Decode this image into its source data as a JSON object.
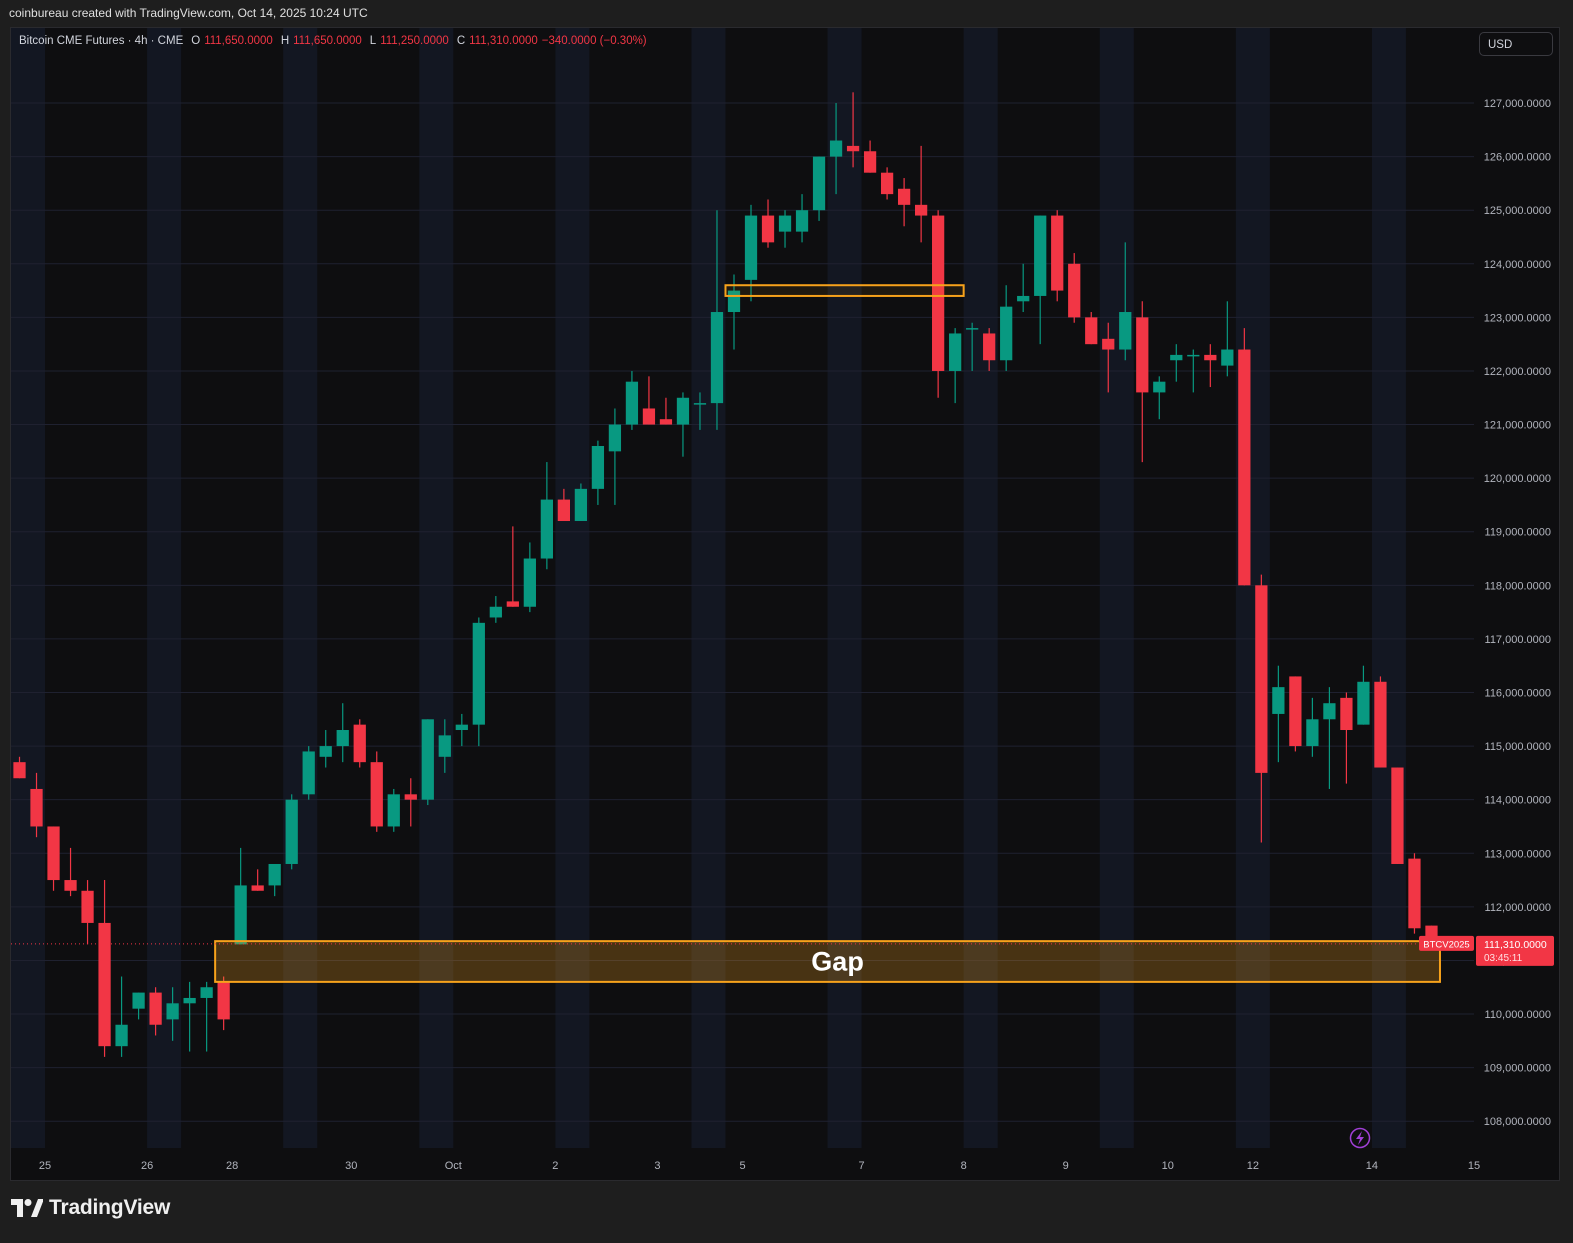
{
  "attribution": "coinbureau created with TradingView.com, Oct 14, 2025 10:24 UTC",
  "legend": {
    "name": "Bitcoin CME Futures · 4h · CME",
    "o_label": "O",
    "o_value": "111,650.0000",
    "h_label": "H",
    "h_value": "111,650.0000",
    "l_label": "L",
    "l_value": "111,250.0000",
    "c_label": "C",
    "c_value": "111,310.0000",
    "change": "−340.0000 (−0.30%)"
  },
  "currency": "USD",
  "price_tag": {
    "symbol": "BTCV2025",
    "price": "111,310.0000",
    "countdown": "03:45:11"
  },
  "footer": {
    "brand": "TradingView"
  },
  "colors": {
    "up": "#089981",
    "down": "#f23645",
    "box": "#f7a21b",
    "session_band": "#131722",
    "bg": "#0e0e10"
  },
  "icons": [
    "tradingview-logo-icon",
    "lightning-icon"
  ],
  "chart_data": {
    "type": "candlestick",
    "title": "Bitcoin CME Futures · 4h · CME",
    "ylim": [
      107500,
      128400
    ],
    "y_ticks": [
      108000,
      109000,
      110000,
      111000,
      112000,
      113000,
      114000,
      115000,
      116000,
      117000,
      118000,
      119000,
      120000,
      121000,
      122000,
      123000,
      124000,
      125000,
      126000,
      127000
    ],
    "y_tick_labels": [
      "108,000.0000",
      "109,000.0000",
      "110,000.0000",
      "111,000.0000",
      "112,000.0000",
      "113,000.0000",
      "114,000.0000",
      "115,000.0000",
      "116,000.0000",
      "117,000.0000",
      "118,000.0000",
      "119,000.0000",
      "120,000.0000",
      "121,000.0000",
      "122,000.0000",
      "123,000.0000",
      "124,000.0000",
      "125,000.0000",
      "126,000.0000",
      "127,000.0000"
    ],
    "x_labels": [
      {
        "label": "25",
        "index": 1.5
      },
      {
        "label": "26",
        "index": 7.5
      },
      {
        "label": "28",
        "index": 12.5
      },
      {
        "label": "30",
        "index": 19.5
      },
      {
        "label": "Oct",
        "index": 25.5
      },
      {
        "label": "2",
        "index": 31.5
      },
      {
        "label": "3",
        "index": 37.5
      },
      {
        "label": "5",
        "index": 42.5
      },
      {
        "label": "7",
        "index": 49.5
      },
      {
        "label": "8",
        "index": 55.5
      },
      {
        "label": "9",
        "index": 61.5
      },
      {
        "label": "10",
        "index": 67.5
      },
      {
        "label": "12",
        "index": 72.5
      },
      {
        "label": "14",
        "index": 79.5
      },
      {
        "label": "15",
        "index": 85.5
      }
    ],
    "total_slots": 86,
    "candles": [
      {
        "o": 114700,
        "h": 114800,
        "l": 114400,
        "c": 114400
      },
      {
        "o": 114200,
        "h": 114500,
        "l": 113300,
        "c": 113500
      },
      {
        "o": 113500,
        "h": 113500,
        "l": 112300,
        "c": 112500
      },
      {
        "o": 112500,
        "h": 113100,
        "l": 112200,
        "c": 112300
      },
      {
        "o": 112300,
        "h": 112500,
        "l": 111300,
        "c": 111700
      },
      {
        "o": 111700,
        "h": 112500,
        "l": 109200,
        "c": 109400
      },
      {
        "o": 109400,
        "h": 110700,
        "l": 109200,
        "c": 109800
      },
      {
        "o": 110100,
        "h": 110400,
        "l": 109900,
        "c": 110400
      },
      {
        "o": 110400,
        "h": 110500,
        "l": 109600,
        "c": 109800
      },
      {
        "o": 109900,
        "h": 110500,
        "l": 109500,
        "c": 110200
      },
      {
        "o": 110200,
        "h": 110600,
        "l": 109300,
        "c": 110300
      },
      {
        "o": 110300,
        "h": 110600,
        "l": 109300,
        "c": 110500
      },
      {
        "o": 110600,
        "h": 110700,
        "l": 109700,
        "c": 109900
      },
      {
        "o": 111300,
        "h": 113100,
        "l": 111300,
        "c": 112400
      },
      {
        "o": 112400,
        "h": 112700,
        "l": 112300,
        "c": 112300
      },
      {
        "o": 112400,
        "h": 112700,
        "l": 112200,
        "c": 112800
      },
      {
        "o": 112800,
        "h": 114100,
        "l": 112700,
        "c": 114000
      },
      {
        "o": 114100,
        "h": 115000,
        "l": 114000,
        "c": 114900
      },
      {
        "o": 114800,
        "h": 115300,
        "l": 114600,
        "c": 115000
      },
      {
        "o": 115000,
        "h": 115800,
        "l": 114700,
        "c": 115300
      },
      {
        "o": 115400,
        "h": 115500,
        "l": 114600,
        "c": 114700
      },
      {
        "o": 114700,
        "h": 114900,
        "l": 113400,
        "c": 113500
      },
      {
        "o": 113500,
        "h": 114200,
        "l": 113400,
        "c": 114100
      },
      {
        "o": 114100,
        "h": 114400,
        "l": 113500,
        "c": 114000
      },
      {
        "o": 114000,
        "h": 115500,
        "l": 113900,
        "c": 115500
      },
      {
        "o": 114800,
        "h": 115500,
        "l": 114500,
        "c": 115200
      },
      {
        "o": 115300,
        "h": 115600,
        "l": 115000,
        "c": 115400
      },
      {
        "o": 115400,
        "h": 117400,
        "l": 115000,
        "c": 117300
      },
      {
        "o": 117400,
        "h": 117800,
        "l": 117300,
        "c": 117600
      },
      {
        "o": 117700,
        "h": 119100,
        "l": 117600,
        "c": 117600
      },
      {
        "o": 117600,
        "h": 118800,
        "l": 117500,
        "c": 118500
      },
      {
        "o": 118500,
        "h": 120300,
        "l": 118300,
        "c": 119600
      },
      {
        "o": 119600,
        "h": 119800,
        "l": 119200,
        "c": 119200
      },
      {
        "o": 119200,
        "h": 119900,
        "l": 119200,
        "c": 119800
      },
      {
        "o": 119800,
        "h": 120700,
        "l": 119500,
        "c": 120600
      },
      {
        "o": 120500,
        "h": 121300,
        "l": 119500,
        "c": 121000
      },
      {
        "o": 121000,
        "h": 122000,
        "l": 120900,
        "c": 121800
      },
      {
        "o": 121300,
        "h": 121900,
        "l": 121000,
        "c": 121000
      },
      {
        "o": 121100,
        "h": 121500,
        "l": 121000,
        "c": 121000
      },
      {
        "o": 121000,
        "h": 121600,
        "l": 120400,
        "c": 121500
      },
      {
        "o": 121400,
        "h": 121600,
        "l": 120900,
        "c": 121400
      },
      {
        "o": 121400,
        "h": 125000,
        "l": 120900,
        "c": 123100
      },
      {
        "o": 123100,
        "h": 123800,
        "l": 122400,
        "c": 123500
      },
      {
        "o": 123700,
        "h": 125100,
        "l": 123300,
        "c": 124900
      },
      {
        "o": 124900,
        "h": 125200,
        "l": 124300,
        "c": 124400
      },
      {
        "o": 124600,
        "h": 125000,
        "l": 124300,
        "c": 124900
      },
      {
        "o": 124600,
        "h": 125300,
        "l": 124400,
        "c": 125000
      },
      {
        "o": 125000,
        "h": 126000,
        "l": 124800,
        "c": 126000
      },
      {
        "o": 126000,
        "h": 127000,
        "l": 125300,
        "c": 126300
      },
      {
        "o": 126200,
        "h": 127200,
        "l": 125800,
        "c": 126100
      },
      {
        "o": 126100,
        "h": 126300,
        "l": 125700,
        "c": 125700
      },
      {
        "o": 125700,
        "h": 125800,
        "l": 125200,
        "c": 125300
      },
      {
        "o": 125400,
        "h": 125600,
        "l": 124700,
        "c": 125100
      },
      {
        "o": 125100,
        "h": 126200,
        "l": 124400,
        "c": 124900
      },
      {
        "o": 124900,
        "h": 125000,
        "l": 121500,
        "c": 122000
      },
      {
        "o": 122000,
        "h": 122800,
        "l": 121400,
        "c": 122700
      },
      {
        "o": 122800,
        "h": 122900,
        "l": 122000,
        "c": 122800
      },
      {
        "o": 122700,
        "h": 122800,
        "l": 122000,
        "c": 122200
      },
      {
        "o": 122200,
        "h": 123600,
        "l": 122000,
        "c": 123200
      },
      {
        "o": 123300,
        "h": 124000,
        "l": 123100,
        "c": 123400
      },
      {
        "o": 123400,
        "h": 124900,
        "l": 122500,
        "c": 124900
      },
      {
        "o": 124900,
        "h": 125000,
        "l": 123300,
        "c": 123500
      },
      {
        "o": 124000,
        "h": 124200,
        "l": 122900,
        "c": 123000
      },
      {
        "o": 123000,
        "h": 123100,
        "l": 122500,
        "c": 122500
      },
      {
        "o": 122600,
        "h": 122900,
        "l": 121600,
        "c": 122400
      },
      {
        "o": 122400,
        "h": 124400,
        "l": 122200,
        "c": 123100
      },
      {
        "o": 123000,
        "h": 123300,
        "l": 120300,
        "c": 121600
      },
      {
        "o": 121600,
        "h": 121900,
        "l": 121100,
        "c": 121800
      },
      {
        "o": 122200,
        "h": 122500,
        "l": 121800,
        "c": 122300
      },
      {
        "o": 122300,
        "h": 122400,
        "l": 121600,
        "c": 122300
      },
      {
        "o": 122300,
        "h": 122500,
        "l": 121700,
        "c": 122200
      },
      {
        "o": 122100,
        "h": 123300,
        "l": 121900,
        "c": 122400
      },
      {
        "o": 122400,
        "h": 122800,
        "l": 118000,
        "c": 118000
      },
      {
        "o": 118000,
        "h": 118200,
        "l": 113200,
        "c": 114500
      },
      {
        "o": 115600,
        "h": 116500,
        "l": 114700,
        "c": 116100
      },
      {
        "o": 116300,
        "h": 116300,
        "l": 114900,
        "c": 115000
      },
      {
        "o": 115000,
        "h": 115900,
        "l": 114800,
        "c": 115500
      },
      {
        "o": 115500,
        "h": 116100,
        "l": 114200,
        "c": 115800
      },
      {
        "o": 115900,
        "h": 116000,
        "l": 114300,
        "c": 115300
      },
      {
        "o": 115400,
        "h": 116500,
        "l": 115400,
        "c": 116200
      },
      {
        "o": 116200,
        "h": 116300,
        "l": 114600,
        "c": 114600
      },
      {
        "o": 114600,
        "h": 114600,
        "l": 112800,
        "c": 112800
      },
      {
        "o": 112900,
        "h": 113000,
        "l": 111500,
        "c": 111600
      },
      {
        "o": 111650,
        "h": 111650,
        "l": 111250,
        "c": 111310
      }
    ],
    "annotations": [
      {
        "type": "rectangle",
        "from_index": 42,
        "to_index": 55,
        "y_from": 123400,
        "y_to": 123600,
        "label": ""
      },
      {
        "type": "rectangle",
        "from_index": 12,
        "to_index": 83,
        "y_from": 110600,
        "y_to": 111360,
        "label": "Gap"
      }
    ],
    "last_price": 111310,
    "last_price_label": "111,310.0000"
  }
}
